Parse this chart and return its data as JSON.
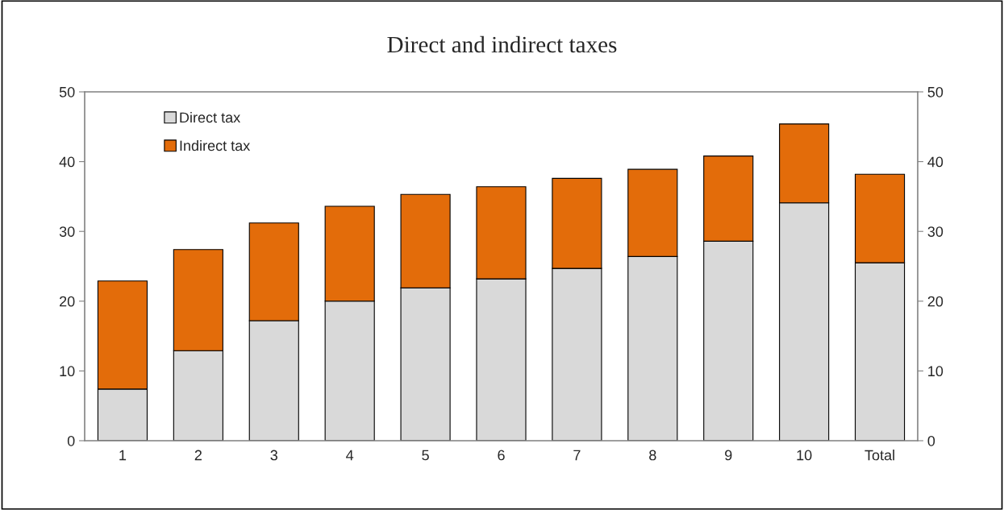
{
  "chart_data": {
    "type": "bar",
    "title": "Direct and indirect taxes",
    "categories": [
      "1",
      "2",
      "3",
      "4",
      "5",
      "6",
      "7",
      "8",
      "9",
      "10",
      "Total"
    ],
    "stacked": true,
    "series": [
      {
        "name": "Direct tax",
        "color": "#d9d9d9",
        "values": [
          7.4,
          12.9,
          17.2,
          20.0,
          21.9,
          23.2,
          24.7,
          26.4,
          28.6,
          34.1,
          25.5
        ]
      },
      {
        "name": "Indirect tax",
        "color": "#e36c0a",
        "values": [
          15.5,
          14.5,
          14.0,
          13.6,
          13.4,
          13.2,
          12.9,
          12.5,
          12.2,
          11.3,
          12.7
        ]
      }
    ],
    "ylim": [
      0,
      50
    ],
    "yticks": [
      0,
      10,
      20,
      30,
      40,
      50
    ],
    "y2lim": [
      0,
      50
    ],
    "y2ticks": [
      0,
      10,
      20,
      30,
      40,
      50
    ],
    "grid": false,
    "legend": "top left"
  }
}
